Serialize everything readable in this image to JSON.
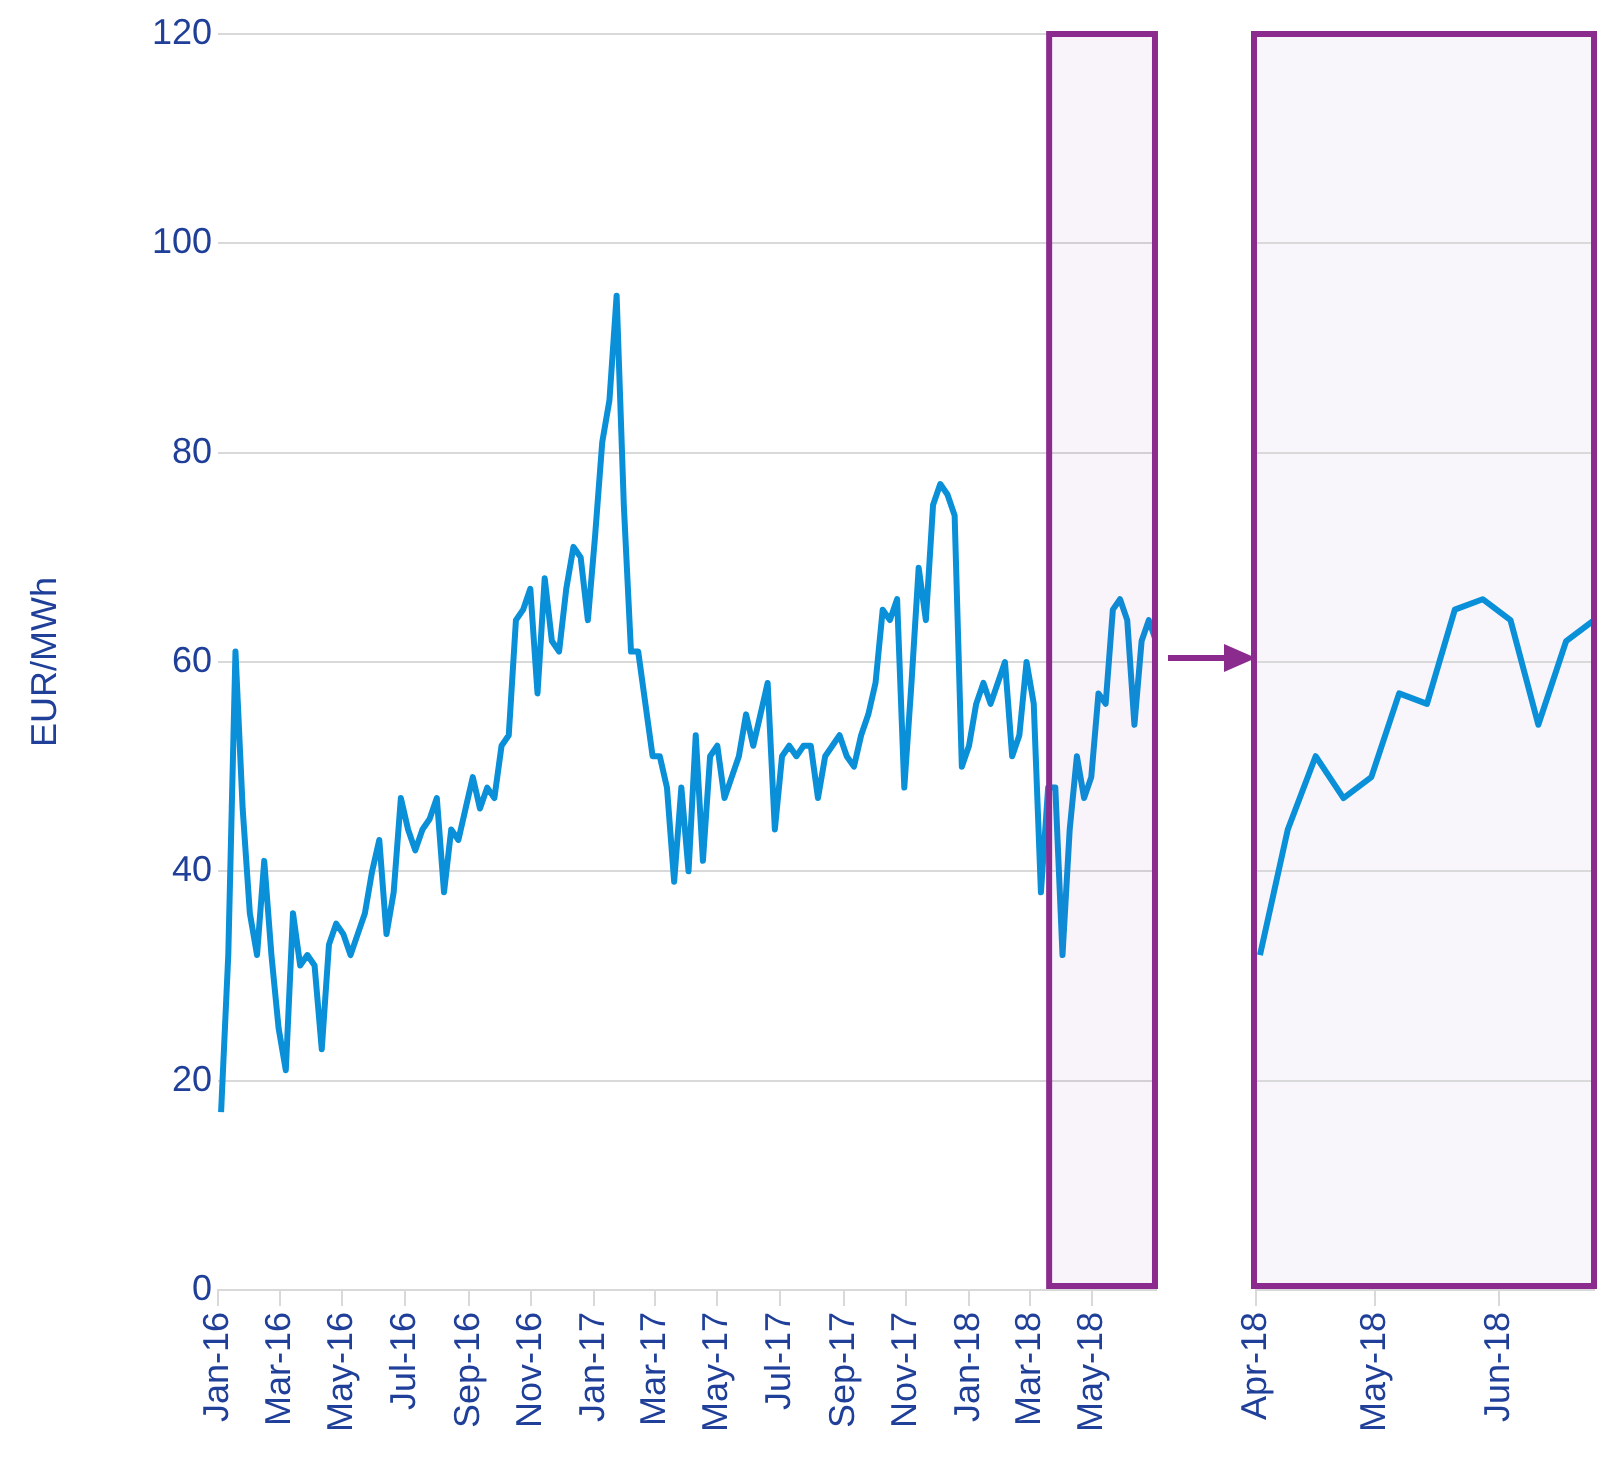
{
  "chart_data": [
    {
      "type": "line",
      "ylabel": "EUR/MWh",
      "color": "#0a90d8",
      "ylim": [
        0,
        120
      ],
      "yticks": [
        0,
        20,
        40,
        60,
        80,
        100,
        120
      ],
      "grid": "y",
      "xlim": [
        "2016-01-01",
        "2018-07-02"
      ],
      "xticks": [
        {
          "value": "2016-01-01",
          "label": "Jan-16"
        },
        {
          "value": "2016-03-01",
          "label": "Mar-16"
        },
        {
          "value": "2016-05-01",
          "label": "May-16"
        },
        {
          "value": "2016-07-01",
          "label": "Jul-16"
        },
        {
          "value": "2016-09-01",
          "label": "Sep-16"
        },
        {
          "value": "2016-11-01",
          "label": "Nov-16"
        },
        {
          "value": "2017-01-01",
          "label": "Jan-17"
        },
        {
          "value": "2017-03-01",
          "label": "Mar-17"
        },
        {
          "value": "2017-05-01",
          "label": "May-17"
        },
        {
          "value": "2017-07-01",
          "label": "Jul-17"
        },
        {
          "value": "2017-09-01",
          "label": "Sep-17"
        },
        {
          "value": "2017-11-01",
          "label": "Nov-17"
        },
        {
          "value": "2018-01-01",
          "label": "Jan-18"
        },
        {
          "value": "2018-03-01",
          "label": "Mar-18"
        },
        {
          "value": "2018-05-01",
          "label": "May-18"
        }
      ],
      "bands": [
        {
          "axis": "x",
          "from": "2018-03-20",
          "to": "2018-07-01",
          "color": "#8b2b8e"
        }
      ],
      "x": [
        "2016-01-04",
        "2016-01-11",
        "2016-01-18",
        "2016-01-25",
        "2016-02-01",
        "2016-02-08",
        "2016-02-15",
        "2016-02-22",
        "2016-02-29",
        "2016-03-07",
        "2016-03-14",
        "2016-03-21",
        "2016-03-28",
        "2016-04-04",
        "2016-04-11",
        "2016-04-18",
        "2016-04-25",
        "2016-05-02",
        "2016-05-09",
        "2016-05-16",
        "2016-05-23",
        "2016-05-30",
        "2016-06-06",
        "2016-06-13",
        "2016-06-20",
        "2016-06-27",
        "2016-07-04",
        "2016-07-11",
        "2016-07-18",
        "2016-07-25",
        "2016-08-01",
        "2016-08-08",
        "2016-08-15",
        "2016-08-22",
        "2016-08-29",
        "2016-09-05",
        "2016-09-12",
        "2016-09-19",
        "2016-09-26",
        "2016-10-03",
        "2016-10-10",
        "2016-10-17",
        "2016-10-24",
        "2016-10-31",
        "2016-11-07",
        "2016-11-14",
        "2016-11-21",
        "2016-11-28",
        "2016-12-05",
        "2016-12-12",
        "2016-12-19",
        "2016-12-26",
        "2017-01-02",
        "2017-01-09",
        "2017-01-16",
        "2017-01-23",
        "2017-01-30",
        "2017-02-06",
        "2017-02-13",
        "2017-02-20",
        "2017-02-27",
        "2017-03-06",
        "2017-03-13",
        "2017-03-20",
        "2017-03-27",
        "2017-04-03",
        "2017-04-10",
        "2017-04-17",
        "2017-04-24",
        "2017-05-01",
        "2017-05-08",
        "2017-05-15",
        "2017-05-22",
        "2017-05-29",
        "2017-06-05",
        "2017-06-12",
        "2017-06-19",
        "2017-06-26",
        "2017-07-03",
        "2017-07-10",
        "2017-07-17",
        "2017-07-24",
        "2017-07-31",
        "2017-08-07",
        "2017-08-14",
        "2017-08-21",
        "2017-08-28",
        "2017-09-04",
        "2017-09-11",
        "2017-09-18",
        "2017-09-25",
        "2017-10-02",
        "2017-10-09",
        "2017-10-16",
        "2017-10-23",
        "2017-10-30",
        "2017-11-06",
        "2017-11-13",
        "2017-11-20",
        "2017-11-27",
        "2017-12-04",
        "2017-12-11",
        "2017-12-18",
        "2017-12-25",
        "2018-01-01",
        "2018-01-08",
        "2018-01-15",
        "2018-01-22",
        "2018-01-29",
        "2018-02-05",
        "2018-02-12",
        "2018-02-19",
        "2018-02-26",
        "2018-03-05",
        "2018-03-12",
        "2018-03-19",
        "2018-03-26",
        "2018-04-02",
        "2018-04-09",
        "2018-04-16",
        "2018-04-23",
        "2018-04-30",
        "2018-05-07",
        "2018-05-14",
        "2018-05-21",
        "2018-05-28",
        "2018-06-04",
        "2018-06-11",
        "2018-06-18",
        "2018-06-25",
        "2018-07-02"
      ],
      "values": [
        17,
        32,
        61,
        46,
        36,
        32,
        41,
        32,
        25,
        21,
        36,
        31,
        32,
        31,
        23,
        33,
        35,
        34,
        32,
        34,
        36,
        40,
        43,
        34,
        38,
        47,
        44,
        42,
        44,
        45,
        47,
        38,
        44,
        43,
        46,
        49,
        46,
        48,
        47,
        52,
        53,
        64,
        65,
        67,
        57,
        68,
        62,
        61,
        67,
        71,
        70,
        64,
        72,
        81,
        85,
        95,
        75,
        61,
        61,
        56,
        51,
        51,
        48,
        39,
        48,
        40,
        53,
        41,
        51,
        52,
        47,
        49,
        51,
        55,
        52,
        55,
        58,
        44,
        51,
        52,
        51,
        52,
        52,
        47,
        51,
        52,
        53,
        51,
        50,
        53,
        55,
        58,
        65,
        64,
        66,
        48,
        58,
        69,
        64,
        75,
        77,
        76,
        74,
        50,
        52,
        56,
        58,
        56,
        58,
        60,
        51,
        53,
        60,
        56,
        38,
        48,
        48,
        32,
        44,
        51,
        47,
        49,
        57,
        56,
        65,
        66,
        64,
        54,
        62,
        64,
        62
      ]
    },
    {
      "type": "line",
      "color": "#0a90d8",
      "ylim": [
        0,
        120
      ],
      "yticks": [
        0,
        20,
        40,
        60,
        80,
        100,
        120
      ],
      "grid": "y",
      "tick_labels": "x",
      "xlim": [
        "2018-04-01",
        "2018-06-25"
      ],
      "xticks": [
        {
          "value": "2018-04-01",
          "label": "Apr-18"
        },
        {
          "value": "2018-05-01",
          "label": "May-18"
        },
        {
          "value": "2018-06-01",
          "label": "Jun-18"
        }
      ],
      "x": [
        "2018-04-02",
        "2018-04-09",
        "2018-04-16",
        "2018-04-23",
        "2018-04-30",
        "2018-05-07",
        "2018-05-14",
        "2018-05-21",
        "2018-05-28",
        "2018-06-04",
        "2018-06-11",
        "2018-06-18",
        "2018-06-25"
      ],
      "values": [
        32,
        44,
        51,
        47,
        49,
        57,
        56,
        65,
        66,
        64,
        54,
        62,
        64
      ]
    }
  ]
}
